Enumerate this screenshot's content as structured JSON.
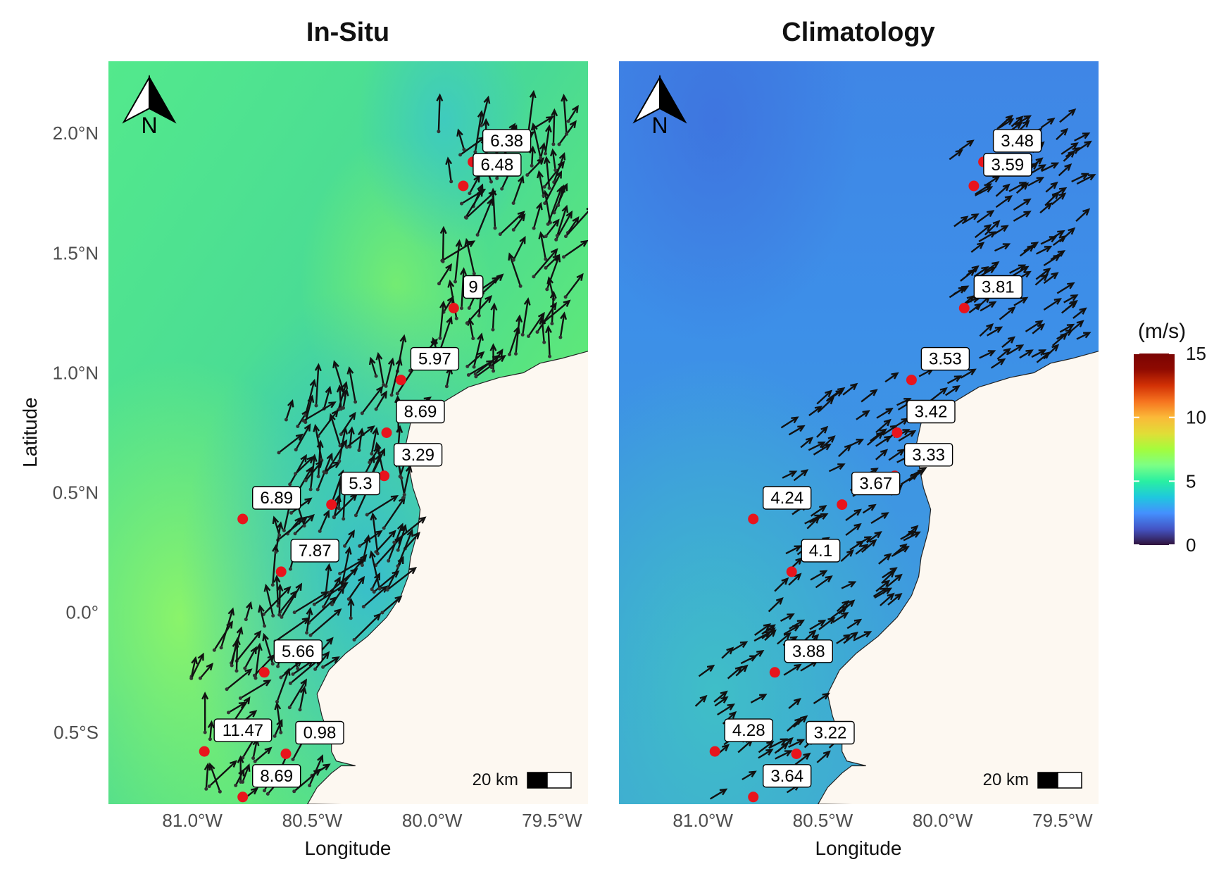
{
  "panels": [
    {
      "title": "In-Situ",
      "stations": [
        {
          "lon": -79.83,
          "lat": 1.88,
          "value": "6.38"
        },
        {
          "lon": -79.87,
          "lat": 1.78,
          "value": "6.48"
        },
        {
          "lon": -79.91,
          "lat": 1.27,
          "value": "9"
        },
        {
          "lon": -80.13,
          "lat": 0.97,
          "value": "5.97"
        },
        {
          "lon": -80.19,
          "lat": 0.75,
          "value": "8.69"
        },
        {
          "lon": -80.2,
          "lat": 0.57,
          "value": "3.29"
        },
        {
          "lon": -80.42,
          "lat": 0.45,
          "value": "5.3"
        },
        {
          "lon": -80.79,
          "lat": 0.39,
          "value": "6.89"
        },
        {
          "lon": -80.63,
          "lat": 0.17,
          "value": "7.87"
        },
        {
          "lon": -80.7,
          "lat": -0.25,
          "value": "5.66"
        },
        {
          "lon": -80.95,
          "lat": -0.58,
          "value": "11.47"
        },
        {
          "lon": -80.61,
          "lat": -0.59,
          "value": "0.98"
        },
        {
          "lon": -80.79,
          "lat": -0.77,
          "value": "8.69"
        }
      ]
    },
    {
      "title": "Climatology",
      "stations": [
        {
          "lon": -79.83,
          "lat": 1.88,
          "value": "3.48"
        },
        {
          "lon": -79.87,
          "lat": 1.78,
          "value": "3.59"
        },
        {
          "lon": -79.91,
          "lat": 1.27,
          "value": "3.81"
        },
        {
          "lon": -80.13,
          "lat": 0.97,
          "value": "3.53"
        },
        {
          "lon": -80.19,
          "lat": 0.75,
          "value": "3.42"
        },
        {
          "lon": -80.2,
          "lat": 0.57,
          "value": "3.33"
        },
        {
          "lon": -80.42,
          "lat": 0.45,
          "value": "3.67"
        },
        {
          "lon": -80.79,
          "lat": 0.39,
          "value": "4.24"
        },
        {
          "lon": -80.63,
          "lat": 0.17,
          "value": "4.1"
        },
        {
          "lon": -80.7,
          "lat": -0.25,
          "value": "3.88"
        },
        {
          "lon": -80.95,
          "lat": -0.58,
          "value": "4.28"
        },
        {
          "lon": -80.61,
          "lat": -0.59,
          "value": "3.22"
        },
        {
          "lon": -80.79,
          "lat": -0.77,
          "value": "3.64"
        }
      ]
    }
  ],
  "axes": {
    "x_label": "Longitude",
    "y_label": "Latitude",
    "lon_range": [
      -81.35,
      -79.35
    ],
    "lat_range": [
      -0.8,
      2.3
    ],
    "x_ticks": [
      {
        "value": -81.0,
        "label": "81.0°W"
      },
      {
        "value": -80.5,
        "label": "80.5°W"
      },
      {
        "value": -80.0,
        "label": "80.0°W"
      },
      {
        "value": -79.5,
        "label": "79.5°W"
      }
    ],
    "y_ticks": [
      {
        "value": 2.0,
        "label": "2.0°N"
      },
      {
        "value": 1.5,
        "label": "1.5°N"
      },
      {
        "value": 1.0,
        "label": "1.0°N"
      },
      {
        "value": 0.5,
        "label": "0.5°N"
      },
      {
        "value": 0.0,
        "label": "0.0°"
      },
      {
        "value": -0.5,
        "label": "0.5°S"
      }
    ]
  },
  "coastline": [
    [
      -79.35,
      1.09
    ],
    [
      -79.46,
      1.06
    ],
    [
      -79.55,
      1.04
    ],
    [
      -79.62,
      1.0
    ],
    [
      -79.72,
      0.98
    ],
    [
      -79.85,
      0.94
    ],
    [
      -79.95,
      0.88
    ],
    [
      -80.02,
      0.84
    ],
    [
      -80.07,
      0.83
    ],
    [
      -80.09,
      0.79
    ],
    [
      -80.11,
      0.7
    ],
    [
      -80.1,
      0.62
    ],
    [
      -80.08,
      0.52
    ],
    [
      -80.05,
      0.43
    ],
    [
      -80.06,
      0.34
    ],
    [
      -80.09,
      0.23
    ],
    [
      -80.1,
      0.15
    ],
    [
      -80.13,
      0.07
    ],
    [
      -80.19,
      -0.02
    ],
    [
      -80.27,
      -0.1
    ],
    [
      -80.36,
      -0.17
    ],
    [
      -80.43,
      -0.24
    ],
    [
      -80.48,
      -0.34
    ],
    [
      -80.46,
      -0.43
    ],
    [
      -80.42,
      -0.55
    ],
    [
      -80.42,
      -0.58
    ],
    [
      -80.4,
      -0.62
    ],
    [
      -80.32,
      -0.64
    ],
    [
      -80.38,
      -0.64
    ],
    [
      -80.42,
      -0.67
    ],
    [
      -80.48,
      -0.73
    ],
    [
      -80.52,
      -0.8
    ]
  ],
  "north_arrow": {
    "letter": "N"
  },
  "scale_bar": {
    "label": "20 km"
  },
  "legend": {
    "title": "(m/s)",
    "ticks": [
      {
        "value": 15,
        "label": "15"
      },
      {
        "value": 10,
        "label": "10"
      },
      {
        "value": 5,
        "label": "5"
      },
      {
        "value": 0,
        "label": "0"
      }
    ],
    "range": [
      0,
      15
    ],
    "colors": [
      "#30123b",
      "#4454c4",
      "#4490fe",
      "#1fc8de",
      "#29efa2",
      "#7cff85",
      "#a4fc3c",
      "#e1dd37",
      "#fbb938",
      "#f6731f",
      "#d23105",
      "#8f0a01",
      "#7a0403"
    ]
  },
  "background": {
    "land_color": "#fdf8f1",
    "insitu_base_color": "#52e98a",
    "climatology_base_color": "#3d8ee8"
  }
}
